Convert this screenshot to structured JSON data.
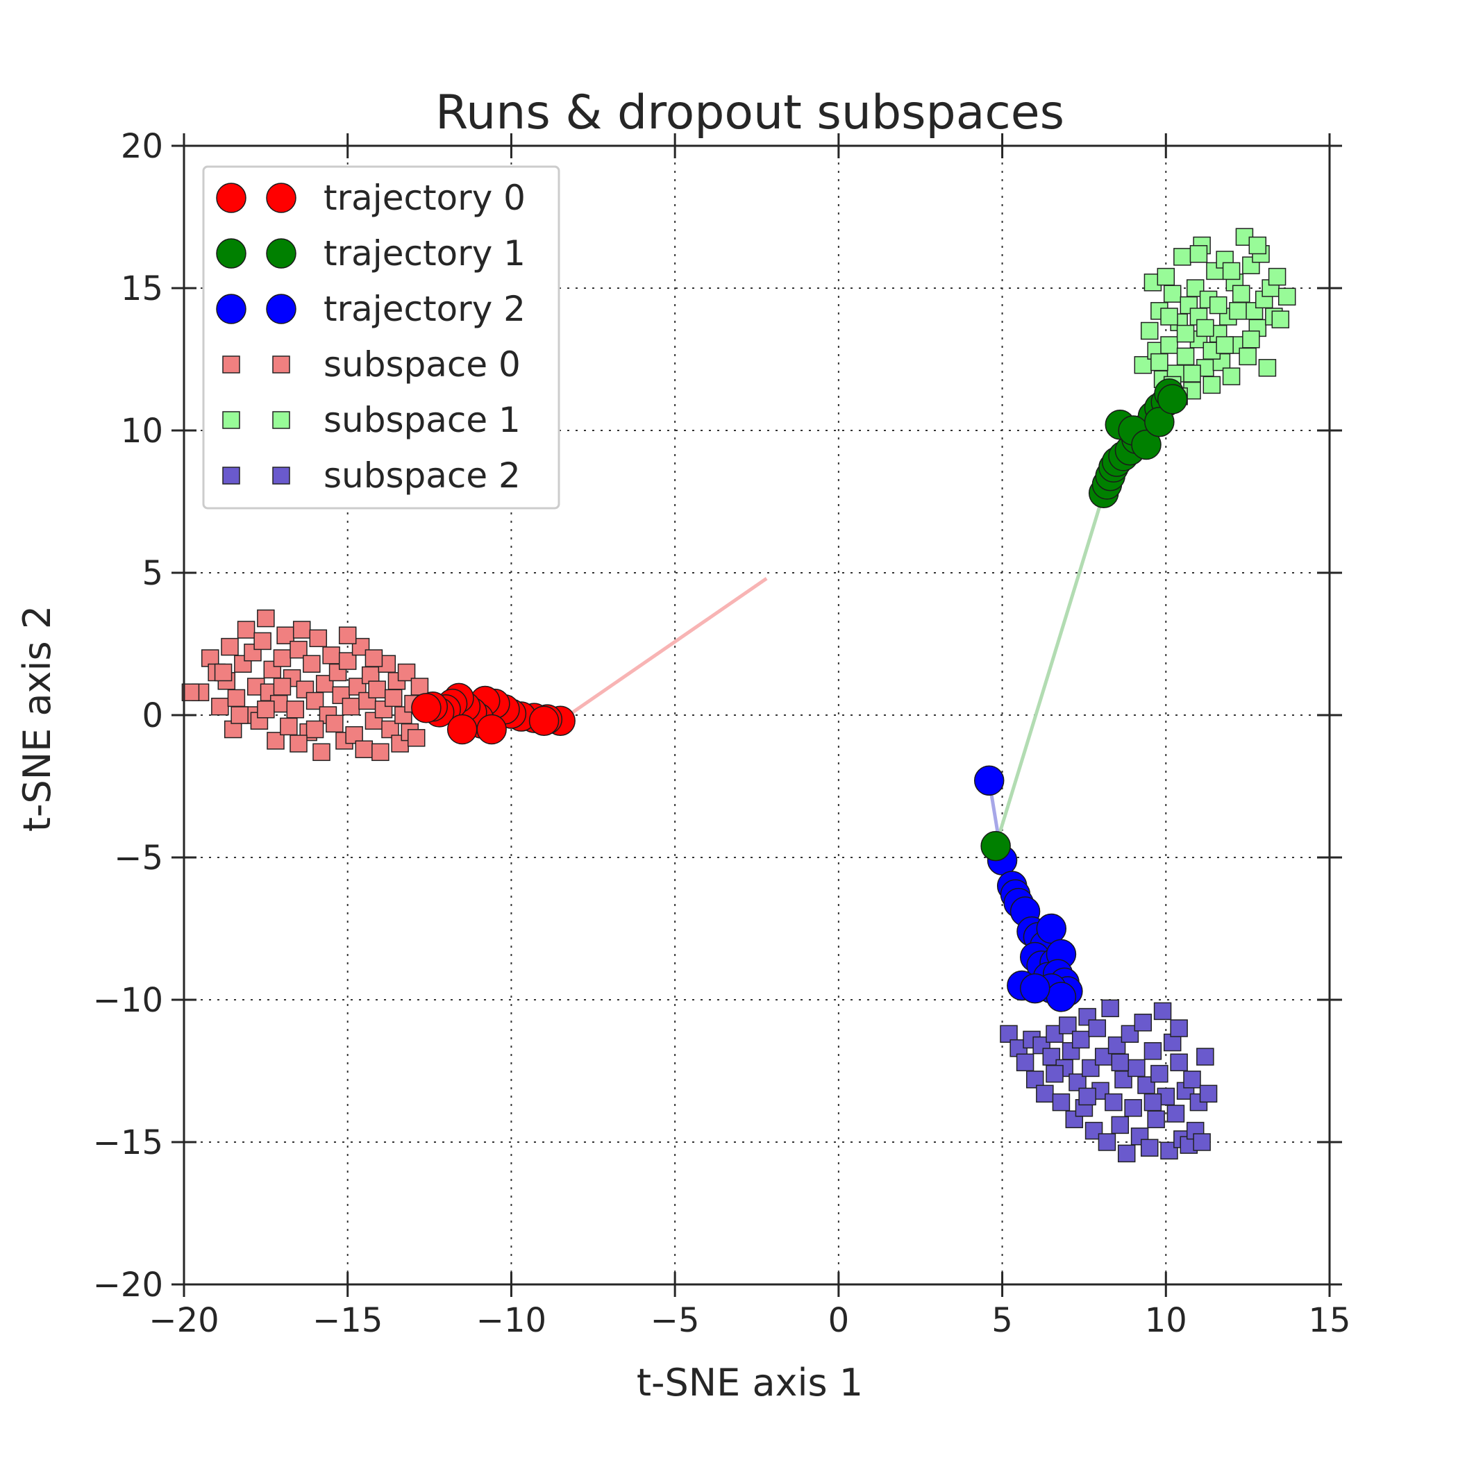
{
  "chart_data": {
    "type": "scatter",
    "title": "Runs & dropout subspaces",
    "xlabel": "t-SNE axis 1",
    "ylabel": "t-SNE axis 2",
    "xlim": [
      -20,
      15
    ],
    "ylim": [
      -20,
      20
    ],
    "xticks": [
      -20,
      -15,
      -10,
      -5,
      0,
      5,
      10,
      15
    ],
    "xtick_labels": [
      "−20",
      "−15",
      "−10",
      "−5",
      "0",
      "5",
      "10",
      "15"
    ],
    "yticks": [
      -20,
      -15,
      -10,
      -5,
      0,
      5,
      10,
      15,
      20
    ],
    "ytick_labels": [
      "−20",
      "−15",
      "−10",
      "−5",
      "0",
      "5",
      "10",
      "15",
      "20"
    ],
    "grid": true,
    "legend_position": "top-left",
    "origin": {
      "x": 4.8,
      "y": -4.6
    },
    "trajectories": [
      {
        "name": "trajectory 0",
        "color": "#ff0000",
        "line_color": "#f8b4b4",
        "start": [
          -2.2,
          4.8
        ],
        "points": [
          [
            -8.5,
            -0.2
          ],
          [
            -8.9,
            -0.15
          ],
          [
            -9.3,
            -0.1
          ],
          [
            -9.7,
            -0.05
          ],
          [
            -10.0,
            0.05
          ],
          [
            -10.2,
            0.2
          ],
          [
            -10.5,
            0.4
          ],
          [
            -10.8,
            0.5
          ],
          [
            -10.9,
            -0.3
          ],
          [
            -11.0,
            -0.1
          ],
          [
            -11.2,
            0.1
          ],
          [
            -11.4,
            0.3
          ],
          [
            -11.6,
            0.6
          ],
          [
            -11.8,
            0.4
          ],
          [
            -12.0,
            0.2
          ],
          [
            -12.2,
            0.1
          ],
          [
            -12.4,
            0.3
          ],
          [
            -12.6,
            0.25
          ],
          [
            -11.5,
            -0.5
          ],
          [
            -10.6,
            -0.5
          ],
          [
            -9.0,
            -0.2
          ]
        ]
      },
      {
        "name": "trajectory 1",
        "color": "#008000",
        "line_color": "#b2dcb2",
        "start": [
          4.8,
          -4.6
        ],
        "points": [
          [
            8.1,
            7.8
          ],
          [
            8.2,
            8.1
          ],
          [
            8.3,
            8.4
          ],
          [
            8.4,
            8.7
          ],
          [
            8.5,
            8.9
          ],
          [
            8.7,
            9.1
          ],
          [
            8.9,
            9.3
          ],
          [
            9.1,
            9.7
          ],
          [
            9.3,
            9.9
          ],
          [
            9.5,
            10.2
          ],
          [
            9.6,
            10.5
          ],
          [
            9.8,
            10.8
          ],
          [
            10.0,
            11.0
          ],
          [
            10.1,
            11.3
          ],
          [
            8.6,
            10.2
          ],
          [
            9.0,
            10.0
          ],
          [
            9.4,
            9.5
          ],
          [
            9.8,
            10.3
          ],
          [
            10.2,
            11.1
          ]
        ]
      },
      {
        "name": "trajectory 2",
        "color": "#0000ff",
        "line_color": "#a7a7e8",
        "start": [
          4.6,
          -2.3
        ],
        "points": [
          [
            5.0,
            -5.1
          ],
          [
            5.3,
            -6.0
          ],
          [
            5.4,
            -6.3
          ],
          [
            5.5,
            -6.6
          ],
          [
            5.7,
            -6.9
          ],
          [
            5.9,
            -7.6
          ],
          [
            6.1,
            -7.8
          ],
          [
            6.3,
            -8.1
          ],
          [
            6.5,
            -7.5
          ],
          [
            6.0,
            -8.5
          ],
          [
            6.2,
            -8.8
          ],
          [
            6.6,
            -8.7
          ],
          [
            6.8,
            -8.4
          ],
          [
            6.4,
            -9.2
          ],
          [
            6.7,
            -9.1
          ],
          [
            6.9,
            -9.4
          ],
          [
            7.0,
            -9.7
          ],
          [
            6.5,
            -9.6
          ],
          [
            6.8,
            -9.9
          ],
          [
            5.6,
            -9.5
          ],
          [
            6.0,
            -9.6
          ]
        ]
      }
    ],
    "subspaces": [
      {
        "name": "subspace 0",
        "color": "#f08080",
        "points": [
          [
            -19.5,
            0.8
          ],
          [
            -19.2,
            2.0
          ],
          [
            -19.0,
            1.5
          ],
          [
            -18.9,
            0.3
          ],
          [
            -18.7,
            1.2
          ],
          [
            -18.6,
            2.4
          ],
          [
            -18.5,
            -0.5
          ],
          [
            -18.4,
            0.6
          ],
          [
            -18.2,
            1.8
          ],
          [
            -18.1,
            3.0
          ],
          [
            -18.0,
            0.0
          ],
          [
            -17.9,
            2.2
          ],
          [
            -17.8,
            1.0
          ],
          [
            -17.7,
            -0.2
          ],
          [
            -17.6,
            2.6
          ],
          [
            -17.5,
            3.4
          ],
          [
            -17.4,
            0.8
          ],
          [
            -17.3,
            1.6
          ],
          [
            -17.2,
            -0.9
          ],
          [
            -17.1,
            0.4
          ],
          [
            -17.0,
            2.0
          ],
          [
            -16.9,
            2.8
          ],
          [
            -16.8,
            -0.4
          ],
          [
            -16.7,
            1.3
          ],
          [
            -16.6,
            0.2
          ],
          [
            -16.5,
            2.3
          ],
          [
            -16.4,
            3.0
          ],
          [
            -16.3,
            0.9
          ],
          [
            -16.2,
            -0.6
          ],
          [
            -16.1,
            1.8
          ],
          [
            -16.0,
            0.5
          ],
          [
            -15.9,
            2.7
          ],
          [
            -15.8,
            -1.3
          ],
          [
            -15.7,
            1.1
          ],
          [
            -15.6,
            0.0
          ],
          [
            -15.5,
            2.1
          ],
          [
            -15.4,
            -0.3
          ],
          [
            -15.3,
            1.5
          ],
          [
            -15.2,
            0.7
          ],
          [
            -15.1,
            -0.9
          ],
          [
            -15.0,
            1.9
          ],
          [
            -14.9,
            0.3
          ],
          [
            -14.8,
            -0.7
          ],
          [
            -14.7,
            1.0
          ],
          [
            -14.6,
            2.4
          ],
          [
            -14.5,
            -1.2
          ],
          [
            -14.4,
            0.5
          ],
          [
            -14.3,
            1.4
          ],
          [
            -14.2,
            -0.2
          ],
          [
            -14.1,
            0.9
          ],
          [
            -14.0,
            -1.3
          ],
          [
            -13.9,
            0.2
          ],
          [
            -13.8,
            1.8
          ],
          [
            -13.7,
            -0.5
          ],
          [
            -13.6,
            0.6
          ],
          [
            -13.5,
            1.2
          ],
          [
            -13.4,
            -1.0
          ],
          [
            -13.3,
            0.0
          ],
          [
            -13.2,
            1.5
          ],
          [
            -13.1,
            -0.6
          ],
          [
            -13.0,
            0.4
          ],
          [
            -12.9,
            -0.8
          ],
          [
            -12.8,
            1.0
          ],
          [
            -16.0,
            -0.5
          ],
          [
            -17.0,
            1.0
          ],
          [
            -18.8,
            1.5
          ],
          [
            -15.0,
            2.8
          ],
          [
            -14.2,
            2.0
          ],
          [
            -16.5,
            -1.0
          ],
          [
            -17.5,
            0.2
          ],
          [
            -18.3,
            0.0
          ],
          [
            -19.8,
            0.8
          ]
        ]
      },
      {
        "name": "subspace 1",
        "color": "#98fb98",
        "points": [
          [
            9.3,
            12.3
          ],
          [
            9.5,
            13.5
          ],
          [
            9.6,
            15.2
          ],
          [
            9.7,
            12.8
          ],
          [
            9.8,
            14.2
          ],
          [
            9.9,
            11.8
          ],
          [
            10.0,
            15.4
          ],
          [
            10.1,
            13.0
          ],
          [
            10.2,
            14.8
          ],
          [
            10.3,
            12.0
          ],
          [
            10.4,
            13.8
          ],
          [
            10.5,
            16.1
          ],
          [
            10.6,
            12.6
          ],
          [
            10.7,
            14.4
          ],
          [
            10.8,
            11.4
          ],
          [
            10.9,
            15.0
          ],
          [
            11.0,
            13.2
          ],
          [
            11.1,
            16.5
          ],
          [
            11.2,
            12.2
          ],
          [
            11.3,
            14.6
          ],
          [
            11.4,
            11.6
          ],
          [
            11.5,
            15.6
          ],
          [
            11.6,
            13.4
          ],
          [
            11.7,
            12.4
          ],
          [
            11.8,
            16.0
          ],
          [
            11.9,
            14.0
          ],
          [
            12.0,
            11.9
          ],
          [
            12.1,
            15.2
          ],
          [
            12.2,
            13.0
          ],
          [
            12.3,
            14.8
          ],
          [
            12.4,
            16.8
          ],
          [
            12.5,
            12.6
          ],
          [
            12.6,
            15.8
          ],
          [
            12.7,
            14.2
          ],
          [
            12.8,
            13.6
          ],
          [
            12.9,
            16.2
          ],
          [
            13.0,
            14.6
          ],
          [
            13.1,
            12.2
          ],
          [
            13.2,
            15.0
          ],
          [
            13.3,
            14.0
          ],
          [
            13.4,
            15.4
          ],
          [
            13.5,
            13.9
          ],
          [
            13.7,
            14.7
          ],
          [
            10.2,
            11.6
          ],
          [
            10.6,
            13.4
          ],
          [
            11.0,
            14.0
          ],
          [
            11.4,
            12.8
          ],
          [
            11.8,
            13.0
          ],
          [
            12.2,
            14.2
          ],
          [
            12.6,
            13.2
          ],
          [
            10.8,
            12.0
          ],
          [
            11.2,
            13.6
          ],
          [
            9.8,
            12.4
          ],
          [
            10.4,
            11.2
          ],
          [
            11.6,
            14.4
          ],
          [
            12.0,
            15.6
          ],
          [
            11.0,
            16.2
          ],
          [
            10.1,
            14.0
          ],
          [
            12.8,
            16.5
          ]
        ]
      },
      {
        "name": "subspace 2",
        "color": "#6a5acd",
        "points": [
          [
            5.2,
            -11.2
          ],
          [
            5.5,
            -11.7
          ],
          [
            5.7,
            -12.2
          ],
          [
            5.9,
            -11.4
          ],
          [
            6.0,
            -12.8
          ],
          [
            6.2,
            -11.6
          ],
          [
            6.3,
            -13.3
          ],
          [
            6.5,
            -12.0
          ],
          [
            6.6,
            -11.2
          ],
          [
            6.8,
            -13.6
          ],
          [
            6.9,
            -12.4
          ],
          [
            7.0,
            -10.9
          ],
          [
            7.1,
            -11.8
          ],
          [
            7.2,
            -14.2
          ],
          [
            7.3,
            -12.9
          ],
          [
            7.4,
            -11.4
          ],
          [
            7.5,
            -13.8
          ],
          [
            7.6,
            -10.6
          ],
          [
            7.7,
            -12.4
          ],
          [
            7.8,
            -14.6
          ],
          [
            7.9,
            -11.0
          ],
          [
            8.0,
            -13.2
          ],
          [
            8.1,
            -12.0
          ],
          [
            8.2,
            -15.0
          ],
          [
            8.3,
            -10.3
          ],
          [
            8.4,
            -13.6
          ],
          [
            8.5,
            -11.6
          ],
          [
            8.6,
            -14.4
          ],
          [
            8.7,
            -12.8
          ],
          [
            8.8,
            -15.4
          ],
          [
            8.9,
            -11.2
          ],
          [
            9.0,
            -13.8
          ],
          [
            9.1,
            -12.4
          ],
          [
            9.2,
            -14.8
          ],
          [
            9.3,
            -10.8
          ],
          [
            9.4,
            -13.0
          ],
          [
            9.5,
            -15.2
          ],
          [
            9.6,
            -11.8
          ],
          [
            9.7,
            -14.2
          ],
          [
            9.8,
            -12.6
          ],
          [
            9.9,
            -10.4
          ],
          [
            10.0,
            -13.4
          ],
          [
            10.1,
            -15.3
          ],
          [
            10.2,
            -11.5
          ],
          [
            10.3,
            -14.0
          ],
          [
            10.4,
            -12.2
          ],
          [
            10.5,
            -14.9
          ],
          [
            10.6,
            -13.2
          ],
          [
            10.7,
            -15.1
          ],
          [
            10.8,
            -12.8
          ],
          [
            10.9,
            -14.6
          ],
          [
            11.0,
            -13.6
          ],
          [
            11.1,
            -15.0
          ],
          [
            11.3,
            -13.3
          ],
          [
            11.2,
            -12.0
          ],
          [
            6.6,
            -12.6
          ],
          [
            7.6,
            -13.4
          ],
          [
            8.6,
            -12.2
          ],
          [
            9.6,
            -13.6
          ],
          [
            10.4,
            -11.0
          ]
        ]
      }
    ],
    "legend": [
      {
        "label": "trajectory 0",
        "marker": "circle",
        "color": "#ff0000"
      },
      {
        "label": "trajectory 1",
        "marker": "circle",
        "color": "#008000"
      },
      {
        "label": "trajectory 2",
        "marker": "circle",
        "color": "#0000ff"
      },
      {
        "label": "subspace 0",
        "marker": "square",
        "color": "#f08080"
      },
      {
        "label": "subspace 1",
        "marker": "square",
        "color": "#98fb98"
      },
      {
        "label": "subspace 2",
        "marker": "square",
        "color": "#6a5acd"
      }
    ]
  }
}
